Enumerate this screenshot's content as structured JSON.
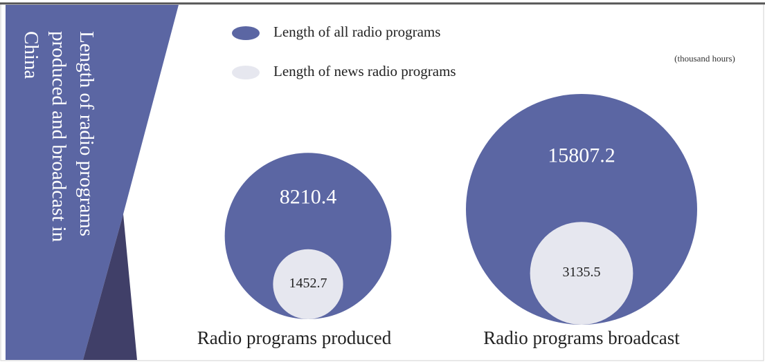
{
  "chart_data": {
    "type": "nested-bubble",
    "title": "Length of radio programs produced and broadcast in China",
    "unit": "(thousand hours)",
    "categories": [
      "Radio programs produced",
      "Radio programs broadcast"
    ],
    "series": [
      {
        "name": "Length of all radio programs",
        "color": "#5b66a3",
        "values": [
          8210.4,
          15807.2
        ]
      },
      {
        "name": "Length of news radio programs",
        "color": "#e6e7ef",
        "values": [
          1452.7,
          3135.5
        ]
      }
    ]
  }
}
